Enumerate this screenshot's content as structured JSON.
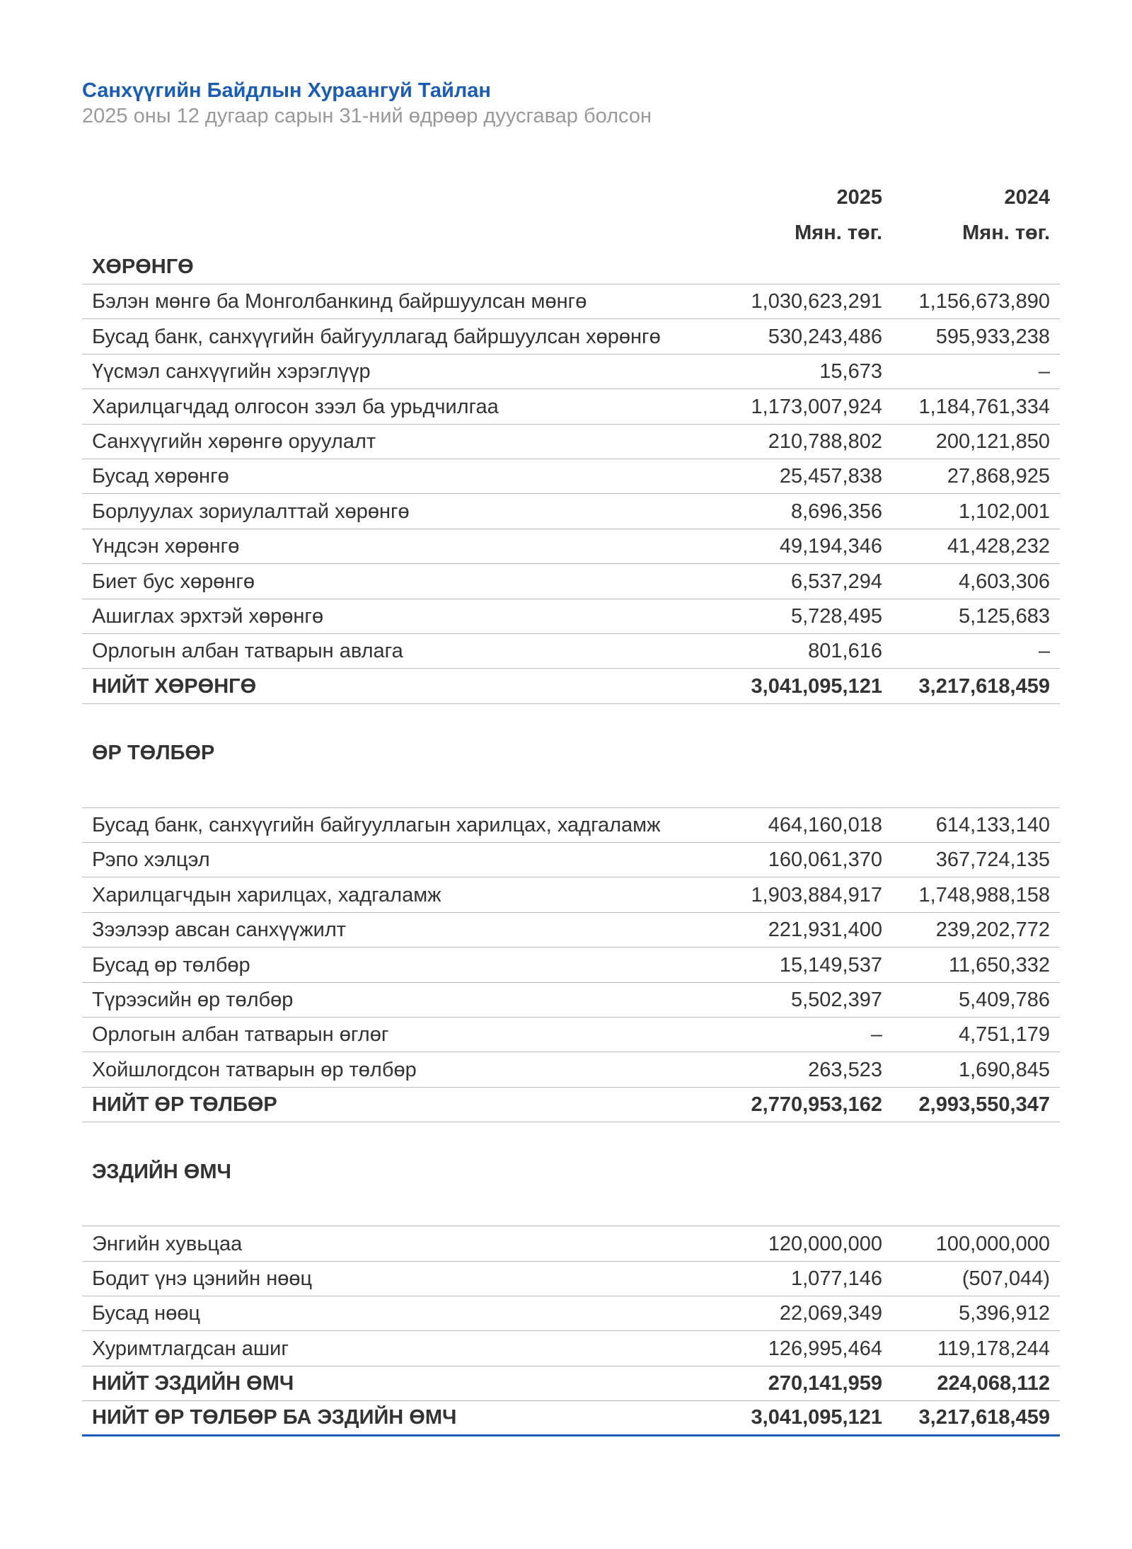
{
  "header": {
    "title": "Санхүүгийн Байдлын Хураангуй Тайлан",
    "subtitle": "2025 оны 12 дугаар сарын 31-ний өдрөөр дуусгавар болсон"
  },
  "table": {
    "years": [
      "2025",
      "2024"
    ],
    "units": [
      "Мян. төг.",
      "Мян. төг."
    ],
    "sections": [
      {
        "heading": "ХӨРӨНГӨ",
        "rows": [
          [
            "Бэлэн мөнгө ба Монголбанкинд байршуулсан мөнгө",
            "1,030,623,291",
            "1,156,673,890"
          ],
          [
            "Бусад банк, санхүүгийн байгууллагад байршуулсан хөрөнгө",
            "530,243,486",
            "595,933,238"
          ],
          [
            "Үүсмэл санхүүгийн хэрэглүүр",
            "15,673",
            "–"
          ],
          [
            "Харилцагчдад олгосон зээл ба урьдчилгаа",
            "1,173,007,924",
            "1,184,761,334"
          ],
          [
            "Санхүүгийн хөрөнгө оруулалт",
            "210,788,802",
            "200,121,850"
          ],
          [
            "Бусад хөрөнгө",
            "25,457,838",
            "27,868,925"
          ],
          [
            "Борлуулах зориулалттай хөрөнгө",
            "8,696,356",
            "1,102,001"
          ],
          [
            "Үндсэн хөрөнгө",
            "49,194,346",
            "41,428,232"
          ],
          [
            "Биет бус хөрөнгө",
            "6,537,294",
            "4,603,306"
          ],
          [
            "Ашиглах эрхтэй хөрөнгө",
            "5,728,495",
            "5,125,683"
          ],
          [
            "Орлогын албан татварын авлага",
            "801,616",
            "–"
          ]
        ],
        "total": [
          "НИЙТ ХӨРӨНГӨ",
          "3,041,095,121",
          "3,217,618,459"
        ]
      },
      {
        "heading": "ӨР ТӨЛБӨР",
        "rows": [
          [
            "Бусад банк, санхүүгийн байгууллагын харилцах, хадгаламж",
            "464,160,018",
            "614,133,140"
          ],
          [
            "Рэпо хэлцэл",
            "160,061,370",
            "367,724,135"
          ],
          [
            "Харилцагчдын харилцах, хадгаламж",
            "1,903,884,917",
            "1,748,988,158"
          ],
          [
            "Зээлээр авсан санхүүжилт",
            "221,931,400",
            "239,202,772"
          ],
          [
            "Бусад өр төлбөр",
            "15,149,537",
            "11,650,332"
          ],
          [
            "Түрээсийн өр төлбөр",
            "5,502,397",
            "5,409,786"
          ],
          [
            "Орлогын албан татварын өглөг",
            "–",
            "4,751,179"
          ],
          [
            "Хойшлогдсон татварын өр төлбөр",
            "263,523",
            "1,690,845"
          ]
        ],
        "total": [
          "НИЙТ ӨР ТӨЛБӨР",
          "2,770,953,162",
          "2,993,550,347"
        ]
      },
      {
        "heading": "ЭЗДИЙН ӨМЧ",
        "rows": [
          [
            "Энгийн хувьцаа",
            "120,000,000",
            "100,000,000"
          ],
          [
            "Бодит үнэ цэнийн нөөц",
            "1,077,146",
            "(507,044)"
          ],
          [
            "Бусад нөөц",
            "22,069,349",
            "5,396,912"
          ],
          [
            "Хуримтлагдсан ашиг",
            "126,995,464",
            "119,178,244"
          ]
        ],
        "total": [
          "НИЙТ ЭЗДИЙН ӨМЧ",
          "270,141,959",
          "224,068,112"
        ],
        "grand_total": [
          "НИЙТ ӨР ТӨЛБӨР БА ЭЗДИЙН ӨМЧ",
          "3,041,095,121",
          "3,217,618,459"
        ]
      }
    ]
  }
}
